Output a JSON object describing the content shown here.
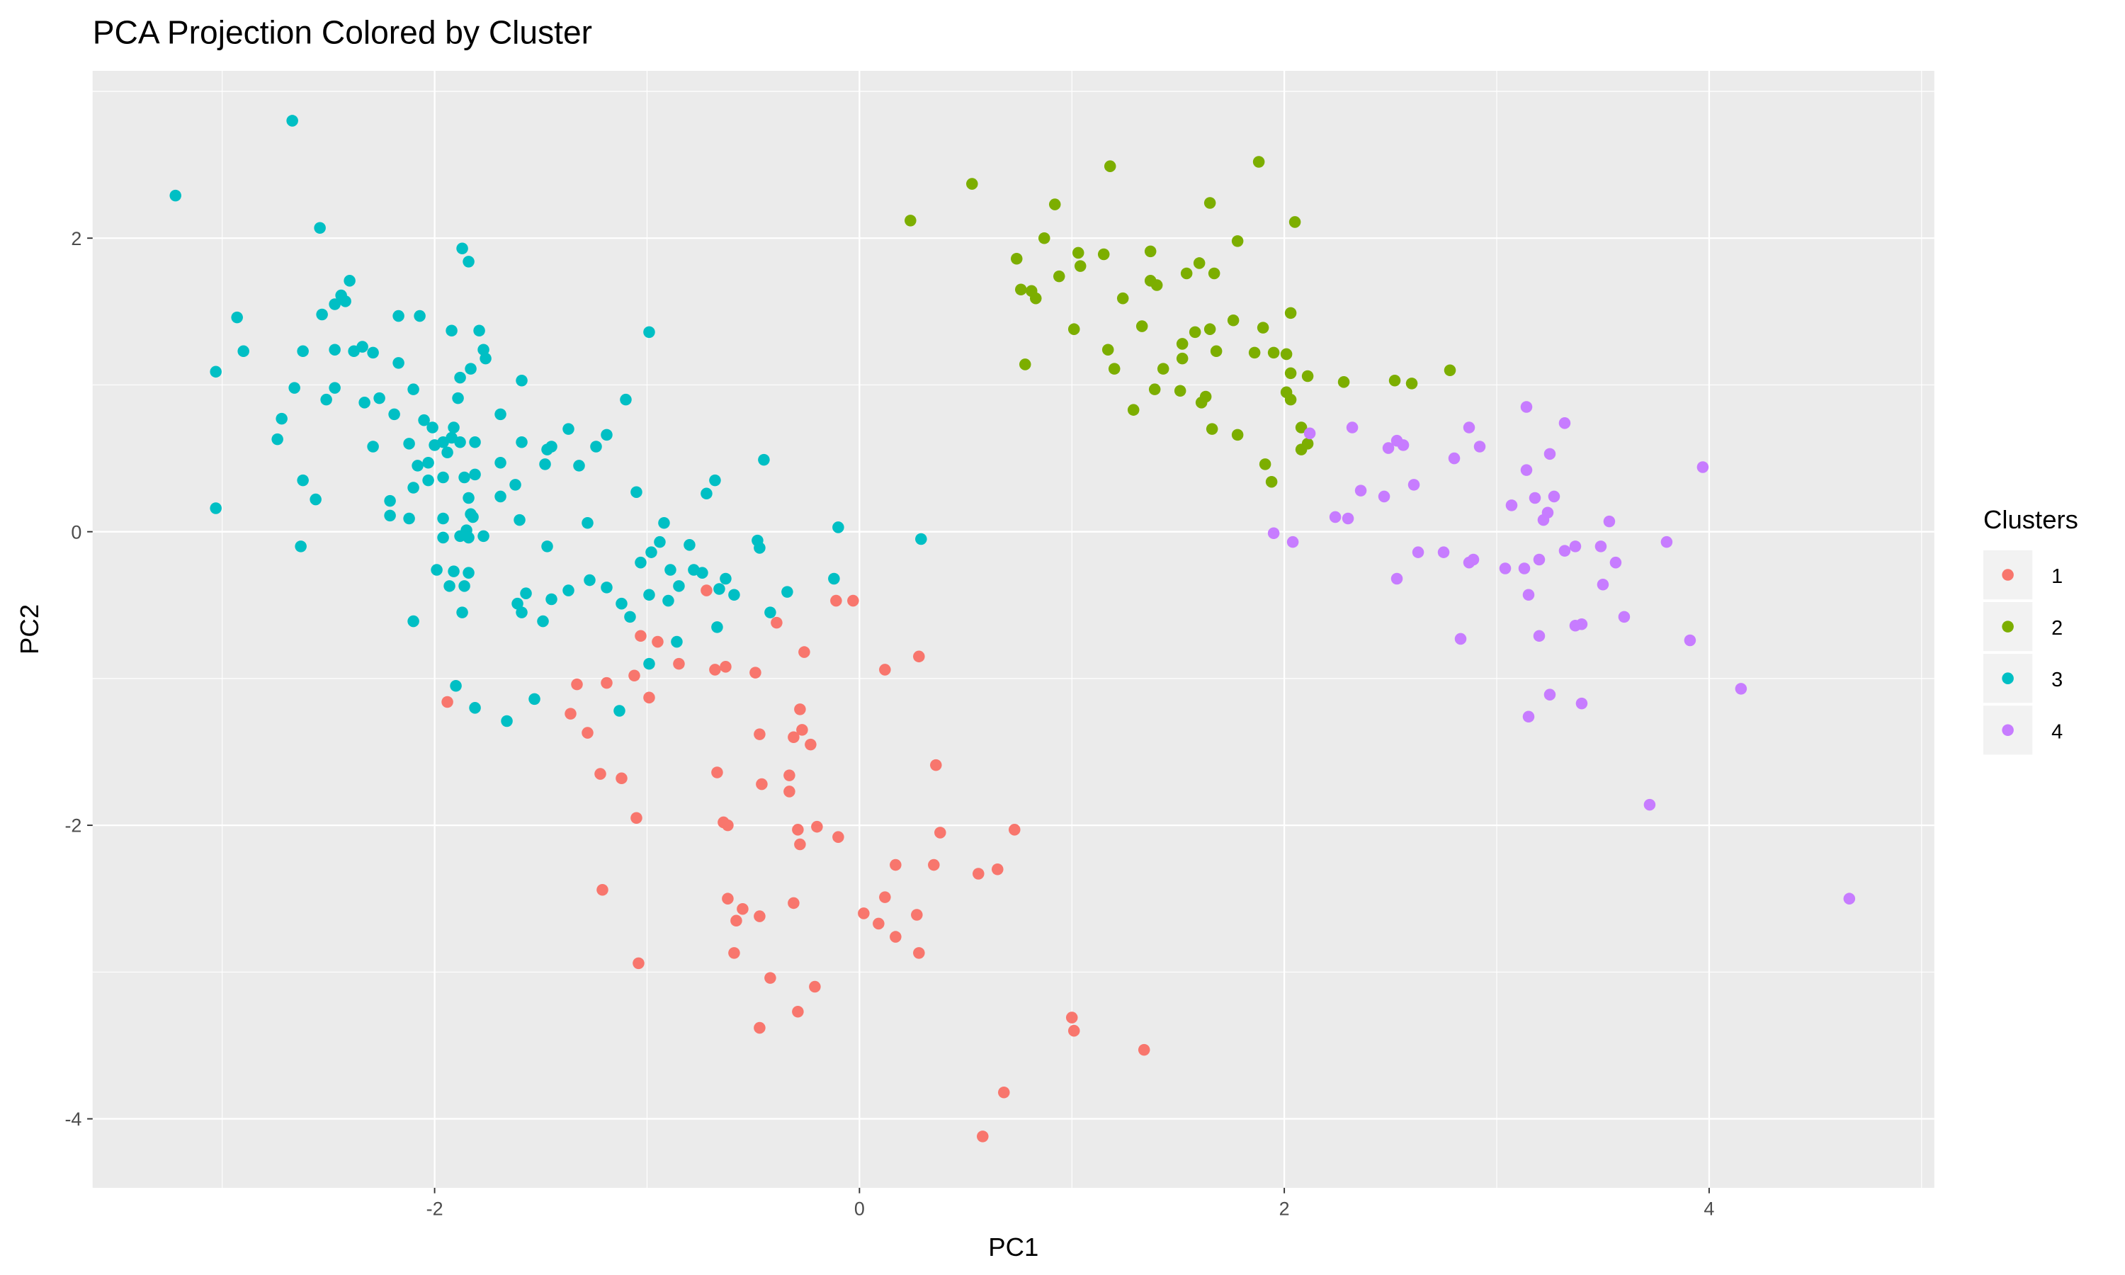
{
  "chart_data": {
    "type": "scatter",
    "title": "PCA Projection Colored by Cluster",
    "x_label": "PC1",
    "y_label": "PC2",
    "legend_title": "Clusters",
    "legend_position": "right",
    "grid": true,
    "xlim": [
      -3.61,
      5.06
    ],
    "ylim": [
      -4.47,
      3.14
    ],
    "xticks": [
      -2,
      0,
      2,
      4
    ],
    "yticks": [
      -4,
      -2,
      0,
      2
    ],
    "series": [
      {
        "name": "1",
        "color": "#F8766D",
        "x": [
          -0.72,
          -1.94,
          -1.33,
          -1.36,
          -1.28,
          -1.19,
          -1.03,
          -0.95,
          -1.06,
          -0.99,
          -0.85,
          -0.68,
          -0.63,
          -0.49,
          -0.39,
          -0.11,
          -0.03,
          -0.26,
          0.12,
          0.28,
          -1.22,
          -1.12,
          -1.05,
          -1.21,
          -1.04,
          -0.67,
          -0.64,
          -0.62,
          -0.47,
          -0.46,
          -0.31,
          -0.28,
          -0.27,
          -0.23,
          -0.33,
          -0.33,
          -0.29,
          -0.2,
          -0.28,
          -0.1,
          -0.62,
          -0.58,
          -0.55,
          -0.47,
          -0.31,
          -0.59,
          -0.42,
          -0.21,
          -0.47,
          -0.29,
          0.02,
          0.09,
          0.12,
          0.17,
          0.17,
          0.27,
          0.28,
          0.36,
          0.35,
          0.38,
          0.56,
          0.65,
          0.73,
          1.0,
          1.01,
          0.68,
          0.58,
          1.34
        ],
        "values": [
          -0.4,
          -1.16,
          -1.04,
          -1.24,
          -1.37,
          -1.03,
          -0.71,
          -0.75,
          -0.98,
          -1.13,
          -0.9,
          -0.94,
          -0.92,
          -0.96,
          -0.62,
          -0.47,
          -0.47,
          -0.82,
          -0.94,
          -0.85,
          -1.65,
          -1.68,
          -1.95,
          -2.44,
          -2.94,
          -1.64,
          -1.98,
          -2.0,
          -1.38,
          -1.72,
          -1.4,
          -1.21,
          -1.35,
          -1.45,
          -1.66,
          -1.77,
          -2.03,
          -2.01,
          -2.13,
          -2.08,
          -2.5,
          -2.65,
          -2.57,
          -2.62,
          -2.53,
          -2.87,
          -3.04,
          -3.1,
          -3.38,
          -3.27,
          -2.6,
          -2.67,
          -2.49,
          -2.27,
          -2.76,
          -2.61,
          -2.87,
          -1.59,
          -2.27,
          -2.05,
          -2.33,
          -2.3,
          -2.03,
          -3.31,
          -3.4,
          -3.82,
          -4.12,
          -3.53
        ]
      },
      {
        "name": "2",
        "color": "#7CAE00",
        "x": [
          0.24,
          0.53,
          1.18,
          1.88,
          1.65,
          2.05,
          0.92,
          0.87,
          0.74,
          1.03,
          1.15,
          1.37,
          1.78,
          0.76,
          0.81,
          0.83,
          0.94,
          1.04,
          1.24,
          1.37,
          1.4,
          1.54,
          1.6,
          1.67,
          1.01,
          1.33,
          1.52,
          1.58,
          1.65,
          1.76,
          1.9,
          2.03,
          1.17,
          1.2,
          0.78,
          1.43,
          1.52,
          1.68,
          1.86,
          1.95,
          2.01,
          2.03,
          2.11,
          2.28,
          2.52,
          2.6,
          2.78,
          1.29,
          1.39,
          1.51,
          1.63,
          1.61,
          1.66,
          1.78,
          2.01,
          2.03,
          2.08,
          1.91,
          1.94,
          2.08,
          2.11
        ],
        "values": [
          2.12,
          2.37,
          2.49,
          2.52,
          2.24,
          2.11,
          2.23,
          2.0,
          1.86,
          1.9,
          1.89,
          1.91,
          1.98,
          1.65,
          1.64,
          1.59,
          1.74,
          1.81,
          1.59,
          1.71,
          1.68,
          1.76,
          1.83,
          1.76,
          1.38,
          1.4,
          1.28,
          1.36,
          1.38,
          1.44,
          1.39,
          1.49,
          1.24,
          1.11,
          1.14,
          1.11,
          1.18,
          1.23,
          1.22,
          1.22,
          1.21,
          1.08,
          1.06,
          1.02,
          1.03,
          1.01,
          1.1,
          0.83,
          0.97,
          0.96,
          0.92,
          0.88,
          0.7,
          0.66,
          0.95,
          0.9,
          0.71,
          0.46,
          0.34,
          0.56,
          0.6
        ]
      },
      {
        "name": "3",
        "color": "#00BFC4",
        "x": [
          -3.22,
          -2.67,
          -2.54,
          -2.93,
          -2.9,
          -3.03,
          -3.03,
          -2.74,
          -2.72,
          -2.66,
          -2.62,
          -2.62,
          -2.56,
          -2.63,
          -2.53,
          -2.51,
          -2.47,
          -2.44,
          -2.42,
          -2.4,
          -2.47,
          -2.47,
          -2.38,
          -2.34,
          -2.29,
          -2.33,
          -2.26,
          -2.29,
          -2.19,
          -2.17,
          -2.17,
          -2.07,
          -2.12,
          -2.21,
          -2.21,
          -2.12,
          -2.1,
          -2.1,
          -2.08,
          -2.05,
          -2.03,
          -2.03,
          -2.01,
          -2.0,
          -1.96,
          -1.96,
          -1.92,
          -1.92,
          -1.91,
          -1.89,
          -1.88,
          -1.87,
          -1.84,
          -1.83,
          -1.79,
          -1.77,
          -1.76,
          -1.94,
          -1.88,
          -1.81,
          -1.96,
          -1.96,
          -1.86,
          -1.84,
          -1.99,
          -1.93,
          -1.91,
          -1.88,
          -1.86,
          -1.85,
          -1.84,
          -1.84,
          -1.83,
          -1.82,
          -1.81,
          -1.87,
          -1.77,
          -1.69,
          -1.69,
          -1.69,
          -1.62,
          -1.6,
          -1.59,
          -1.59,
          -1.61,
          -1.59,
          -1.57,
          -2.1,
          -1.9,
          -1.81,
          -1.66,
          -1.53,
          -1.49,
          -1.48,
          -1.47,
          -1.45,
          -1.47,
          -1.45,
          -1.37,
          -1.37,
          -1.32,
          -1.28,
          -1.27,
          -1.24,
          -1.19,
          -1.19,
          -1.13,
          -1.12,
          -1.1,
          -1.08,
          -1.05,
          -1.03,
          -0.99,
          -0.99,
          -0.99,
          -0.98,
          -0.94,
          -0.92,
          -0.9,
          -0.89,
          -0.86,
          -0.85,
          -0.8,
          -0.78,
          -0.74,
          -0.72,
          -0.68,
          -0.66,
          -0.67,
          -0.63,
          -0.59,
          -0.48,
          -0.47,
          -0.45,
          -0.42,
          -0.34,
          -0.12,
          -0.1,
          0.29
        ],
        "values": [
          2.29,
          2.8,
          2.07,
          1.46,
          1.23,
          1.09,
          0.16,
          0.63,
          0.77,
          0.98,
          1.23,
          0.35,
          0.22,
          -0.1,
          1.48,
          0.9,
          1.55,
          1.61,
          1.57,
          1.71,
          1.24,
          0.98,
          1.23,
          1.26,
          1.22,
          0.88,
          0.91,
          0.58,
          0.8,
          1.15,
          1.47,
          1.47,
          0.6,
          0.21,
          0.11,
          0.09,
          0.3,
          0.97,
          0.45,
          0.76,
          0.47,
          0.35,
          0.71,
          0.59,
          0.61,
          0.37,
          1.37,
          0.64,
          0.71,
          0.91,
          1.05,
          1.93,
          1.84,
          1.11,
          1.37,
          1.24,
          1.18,
          0.54,
          0.61,
          0.61,
          0.09,
          -0.04,
          0.37,
          0.23,
          -0.26,
          -0.37,
          -0.27,
          -0.03,
          -0.37,
          0.01,
          -0.28,
          -0.04,
          0.12,
          0.1,
          0.39,
          -0.55,
          -0.03,
          0.24,
          0.8,
          0.47,
          0.32,
          0.08,
          0.61,
          1.03,
          -0.49,
          -0.55,
          -0.42,
          -0.61,
          -1.05,
          -1.2,
          -1.29,
          -1.14,
          -0.61,
          0.46,
          0.56,
          0.58,
          -0.1,
          -0.46,
          0.7,
          -0.4,
          0.45,
          0.06,
          -0.33,
          0.58,
          0.66,
          -0.38,
          -1.22,
          -0.49,
          0.9,
          -0.58,
          0.27,
          -0.21,
          1.36,
          -0.9,
          -0.43,
          -0.14,
          -0.07,
          0.06,
          -0.47,
          -0.26,
          -0.75,
          -0.37,
          -0.09,
          -0.26,
          -0.28,
          0.26,
          0.35,
          -0.39,
          -0.65,
          -0.32,
          -0.43,
          -0.06,
          -0.11,
          0.49,
          -0.55,
          -0.41,
          -0.32,
          0.03,
          -0.05
        ]
      },
      {
        "name": "4",
        "color": "#C77CFF",
        "x": [
          1.95,
          2.04,
          2.12,
          2.32,
          2.36,
          2.24,
          2.3,
          2.47,
          2.49,
          2.53,
          2.56,
          2.61,
          2.63,
          2.53,
          2.75,
          2.8,
          2.87,
          2.92,
          2.83,
          2.89,
          2.87,
          3.04,
          3.07,
          3.13,
          3.14,
          3.14,
          3.15,
          3.18,
          3.2,
          3.2,
          3.22,
          3.24,
          3.25,
          3.27,
          3.32,
          3.32,
          3.37,
          3.37,
          3.4,
          3.4,
          3.25,
          3.15,
          3.49,
          3.5,
          3.53,
          3.56,
          3.6,
          3.8,
          3.91,
          3.97,
          3.72,
          4.15,
          4.66
        ],
        "values": [
          -0.01,
          -0.07,
          0.67,
          0.71,
          0.28,
          0.1,
          0.09,
          0.24,
          0.57,
          0.62,
          0.59,
          0.32,
          -0.14,
          -0.32,
          -0.14,
          0.5,
          0.71,
          0.58,
          -0.73,
          -0.19,
          -0.21,
          -0.25,
          0.18,
          -0.25,
          0.85,
          0.42,
          -0.43,
          0.23,
          -0.19,
          -0.71,
          0.08,
          0.13,
          0.53,
          0.24,
          0.74,
          -0.13,
          -0.1,
          -0.64,
          -0.63,
          -1.17,
          -1.11,
          -1.26,
          -0.1,
          -0.36,
          0.07,
          -0.21,
          -0.58,
          -0.07,
          -0.74,
          0.44,
          -1.86,
          -1.07,
          -2.5
        ]
      }
    ]
  }
}
